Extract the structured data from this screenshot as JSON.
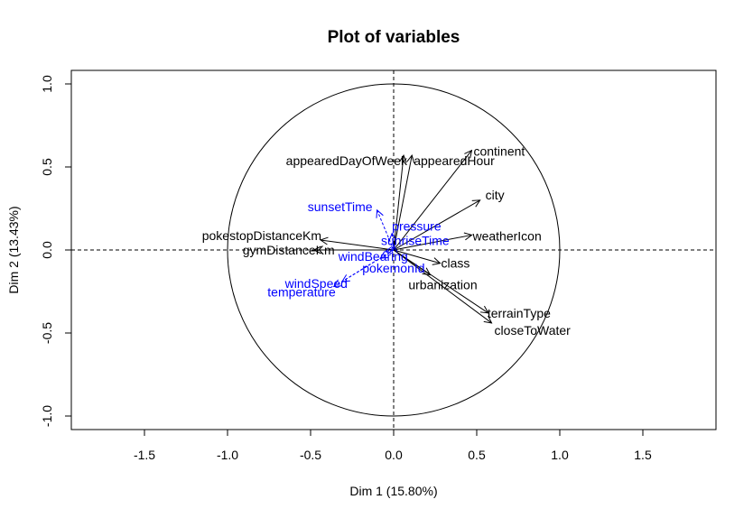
{
  "chart_data": {
    "type": "scatter",
    "subtype": "pca-variables-factor-map",
    "title": "Plot of variables",
    "xlabel": "Dim 1 (15.80%)",
    "ylabel": "Dim 2 (13.43%)",
    "xlim": [
      -1.9,
      1.9
    ],
    "ylim": [
      -1.08,
      1.08
    ],
    "xticks": [
      "-1.5",
      "-1.0",
      "-0.5",
      "0.0",
      "0.5",
      "1.0",
      "1.5"
    ],
    "yticks": [
      "-1.0",
      "-0.5",
      "0.0",
      "0.5",
      "1.0"
    ],
    "correlation_circle": true,
    "reference_lines": "dashed at x=0 and y=0",
    "colors": {
      "active": "#000000",
      "supplementary": "#0000ff"
    },
    "variables": [
      {
        "label": "continent",
        "x": 0.47,
        "y": 0.6,
        "group": "active"
      },
      {
        "label": "appearedDayOfWeek",
        "x": 0.06,
        "y": 0.57,
        "group": "active"
      },
      {
        "label": "appearedHour",
        "x": 0.11,
        "y": 0.57,
        "group": "active"
      },
      {
        "label": "city",
        "x": 0.52,
        "y": 0.3,
        "group": "active"
      },
      {
        "label": "weatherIcon",
        "x": 0.47,
        "y": 0.09,
        "group": "active"
      },
      {
        "label": "pokestopDistanceKm",
        "x": -0.44,
        "y": 0.06,
        "group": "active"
      },
      {
        "label": "gymDistanceKm",
        "x": -0.48,
        "y": 0.0,
        "group": "active"
      },
      {
        "label": "class",
        "x": 0.28,
        "y": -0.08,
        "group": "active"
      },
      {
        "label": "urbanization",
        "x": 0.22,
        "y": -0.15,
        "group": "active"
      },
      {
        "label": "terrainType",
        "x": 0.57,
        "y": -0.38,
        "group": "active"
      },
      {
        "label": "closeToWater",
        "x": 0.59,
        "y": -0.44,
        "group": "active"
      },
      {
        "label": "sunsetTime",
        "x": -0.1,
        "y": 0.24,
        "group": "supplementary"
      },
      {
        "label": "pressure",
        "x": -0.01,
        "y": 0.1,
        "group": "supplementary"
      },
      {
        "label": "sunriseTime",
        "x": 0.0,
        "y": 0.03,
        "group": "supplementary"
      },
      {
        "label": "windBearing",
        "x": -0.05,
        "y": -0.01,
        "group": "supplementary"
      },
      {
        "label": "pokemonId",
        "x": -0.08,
        "y": -0.05,
        "group": "supplementary"
      },
      {
        "label": "windSpeed",
        "x": -0.31,
        "y": -0.19,
        "group": "supplementary"
      },
      {
        "label": "temperature",
        "x": -0.36,
        "y": -0.22,
        "group": "supplementary"
      }
    ]
  }
}
